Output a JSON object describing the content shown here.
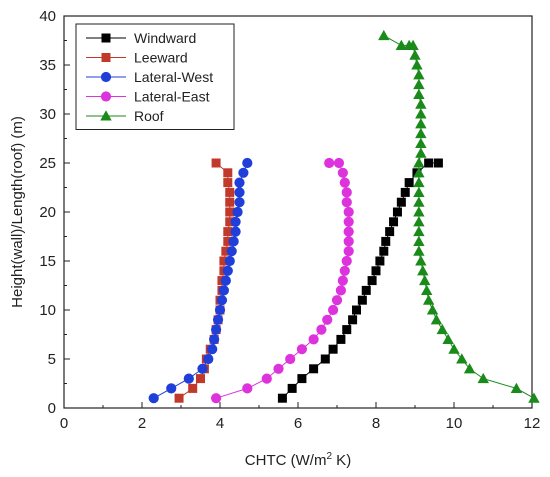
{
  "chart_data": {
    "type": "scatter",
    "xlabel_main": "CHTC (W/m",
    "xlabel_sup": "2",
    "xlabel_end": " K)",
    "ylabel": "Height(wall)/Length(roof) (m)",
    "xlim": [
      0,
      12
    ],
    "ylim": [
      0,
      40
    ],
    "x_ticks": [
      "0",
      "2",
      "4",
      "6",
      "8",
      "10",
      "12"
    ],
    "y_ticks": [
      "0",
      "5",
      "10",
      "15",
      "20",
      "25",
      "30",
      "35",
      "40"
    ],
    "legend_position": "top-left",
    "grid": false,
    "series": [
      {
        "name": "Windward",
        "marker": "square",
        "color": "#000000",
        "x": [
          5.6,
          5.85,
          6.1,
          6.4,
          6.7,
          6.9,
          7.1,
          7.25,
          7.4,
          7.5,
          7.65,
          7.75,
          7.9,
          8.0,
          8.1,
          8.2,
          8.25,
          8.35,
          8.45,
          8.55,
          8.65,
          8.75,
          8.85,
          9.05,
          9.35,
          9.6
        ],
        "y": [
          1,
          2,
          3,
          4,
          5,
          6,
          7,
          8,
          9,
          10,
          11,
          12,
          13,
          14,
          15,
          16,
          17,
          18,
          19,
          20,
          21,
          22,
          23,
          24,
          25,
          25
        ]
      },
      {
        "name": "Leeward",
        "marker": "square",
        "color": "#c0392b",
        "x": [
          2.95,
          3.3,
          3.5,
          3.6,
          3.65,
          3.75,
          3.85,
          3.9,
          3.95,
          4.0,
          4.0,
          4.05,
          4.05,
          4.1,
          4.1,
          4.15,
          4.2,
          4.2,
          4.25,
          4.25,
          4.25,
          4.25,
          4.2,
          4.2,
          3.9
        ],
        "y": [
          1,
          2,
          3,
          4,
          5,
          6,
          7,
          8,
          9,
          10,
          11,
          12,
          13,
          14,
          15,
          16,
          17,
          18,
          19,
          20,
          21,
          22,
          23,
          24,
          25
        ]
      },
      {
        "name": "Lateral-West",
        "marker": "circle",
        "color": "#1f3fd8",
        "x": [
          2.3,
          2.75,
          3.2,
          3.55,
          3.7,
          3.8,
          3.85,
          3.9,
          3.95,
          4.0,
          4.05,
          4.1,
          4.15,
          4.2,
          4.25,
          4.3,
          4.35,
          4.4,
          4.4,
          4.45,
          4.5,
          4.5,
          4.5,
          4.6,
          4.7
        ],
        "y": [
          1,
          2,
          3,
          4,
          5,
          6,
          7,
          8,
          9,
          10,
          11,
          12,
          13,
          14,
          15,
          16,
          17,
          18,
          19,
          20,
          21,
          22,
          23,
          24,
          25
        ]
      },
      {
        "name": "Lateral-East",
        "marker": "circle",
        "color": "#dd33dd",
        "x": [
          3.9,
          4.7,
          5.2,
          5.5,
          5.8,
          6.1,
          6.4,
          6.6,
          6.75,
          6.9,
          7.0,
          7.1,
          7.15,
          7.2,
          7.25,
          7.3,
          7.3,
          7.3,
          7.3,
          7.3,
          7.25,
          7.25,
          7.2,
          7.15,
          7.05,
          6.8
        ],
        "y": [
          1,
          2,
          3,
          4,
          5,
          6,
          7,
          8,
          9,
          10,
          11,
          12,
          13,
          14,
          15,
          16,
          17,
          18,
          19,
          20,
          21,
          22,
          23,
          24,
          25,
          25
        ]
      },
      {
        "name": "Roof",
        "marker": "triangle",
        "color": "#1a8a1a",
        "x": [
          12.05,
          11.6,
          10.75,
          10.4,
          10.2,
          10.0,
          9.85,
          9.7,
          9.55,
          9.45,
          9.35,
          9.3,
          9.25,
          9.2,
          9.15,
          9.1,
          9.1,
          9.1,
          9.1,
          9.1,
          9.1,
          9.1,
          9.1,
          9.1,
          9.1,
          9.15,
          9.15,
          9.15,
          9.15,
          9.15,
          9.15,
          9.1,
          9.1,
          9.1,
          9.05,
          9.0,
          8.95,
          8.85,
          8.65,
          8.2
        ],
        "y": [
          1,
          2,
          3,
          4,
          5,
          6,
          7,
          8,
          9,
          10,
          11,
          12,
          13,
          14,
          15,
          16,
          17,
          18,
          19,
          20,
          21,
          22,
          23,
          24,
          25,
          26,
          27,
          28,
          29,
          30,
          31,
          32,
          33,
          34,
          35,
          36,
          37,
          37,
          37,
          38
        ]
      }
    ]
  }
}
